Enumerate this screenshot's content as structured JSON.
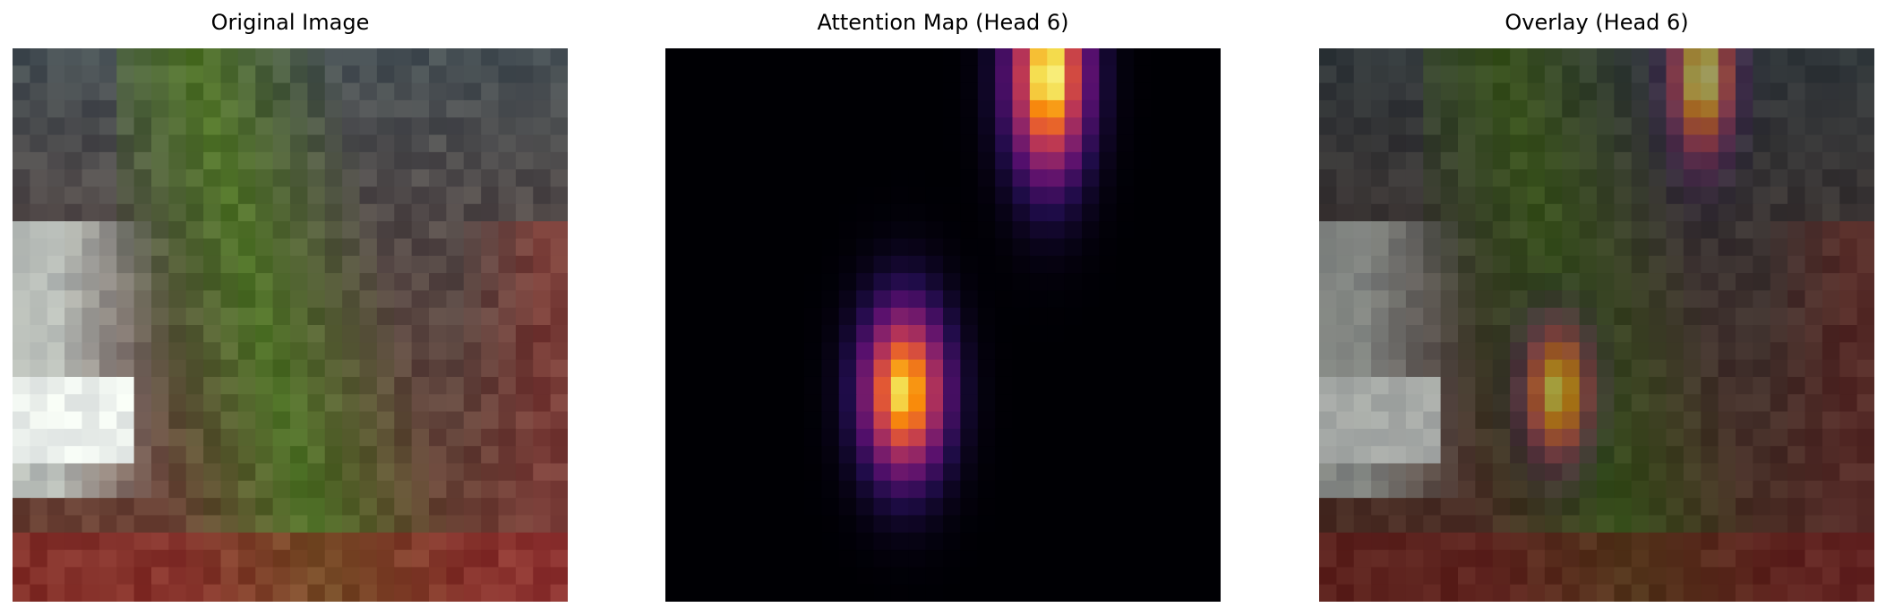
{
  "panels": [
    {
      "title": "Original Image"
    },
    {
      "title": "Attention Map (Head 6)"
    },
    {
      "title": "Overlay (Head 6)"
    }
  ],
  "colors": {
    "background": "#ffffff",
    "attention_low": "#000004",
    "attention_mid": "#b73779",
    "attention_high": "#fcffa4"
  }
}
